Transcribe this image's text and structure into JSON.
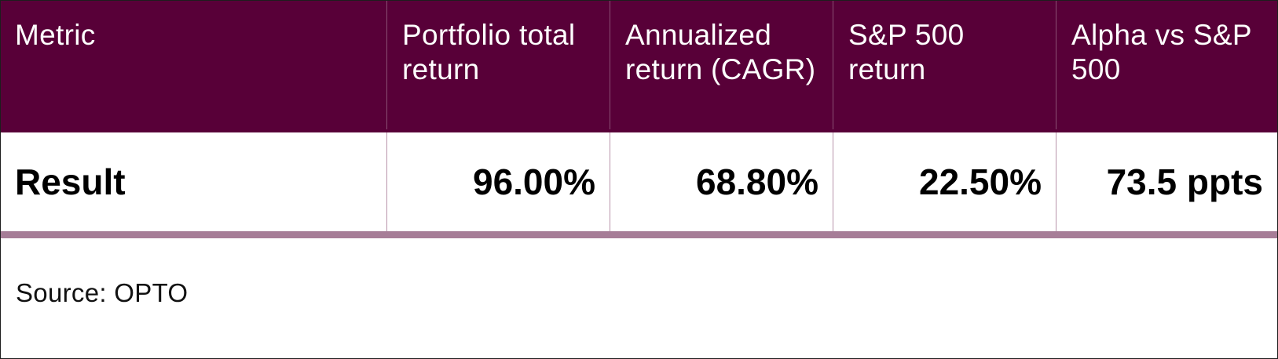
{
  "table": {
    "headers": [
      "Metric",
      "Portfolio total return",
      "Annualized return (CAGR)",
      "S&P 500 return",
      "Alpha vs S&P 500"
    ],
    "rows": [
      [
        "Result",
        "96.00%",
        "68.80%",
        "22.50%",
        "73.5 ppts"
      ]
    ]
  },
  "footer": {
    "source": "Source: OPTO"
  },
  "colors": {
    "header_bg": "#580038",
    "header_text": "#ffffff",
    "divider": "#a67d97",
    "cell_border": "#b894aa"
  }
}
